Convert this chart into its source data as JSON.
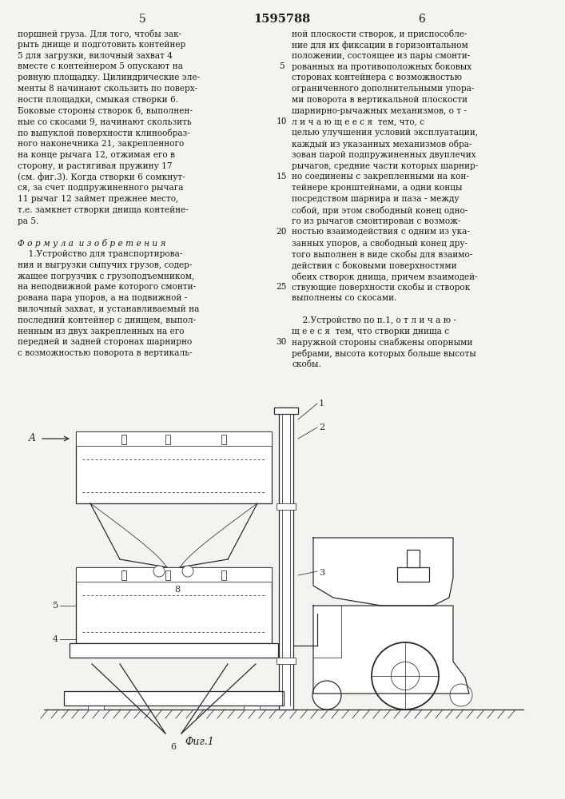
{
  "page_bg": "#f5f3ef",
  "header_page_left": "5",
  "header_title": "1595788",
  "header_page_right": "6",
  "col_left_text": [
    "поршней груза. Для того, чтобы зак-",
    "рыть днище и подготовить контейнер",
    "5 для загрузки, вилочный захват 4",
    "вместе с контейнером 5 опускают на",
    "ровную площадку. Цилиндрические эле-",
    "менты 8 начинают скользить по поверх-",
    "ности площадки, смыкая створки 6.",
    "Боковые стороны створок 6, выполнен-",
    "ные со скосами 9, начинают скользить",
    "по выпуклой поверхности клинообраз-",
    "ного наконечника 21, закрепленного",
    "на конце рычага 12, отжимая его в",
    "сторону, и растягивая пружину 17",
    "(см. фиг.3). Когда створки 6 сомкнут-",
    "ся, за счет подпружиненного рычага",
    "11 рычаг 12 займет прежнее место,",
    "т.е. замкнет створки днища контейне-",
    "ра 5.",
    "",
    "Ф о р м у л а  и з о б р е т е н и я",
    "    1.Устройство для транспортирова-",
    "ния и выгрузки сыпучих грузов, содер-",
    "жащее погрузчик с грузоподъемником,",
    "на неподвижной раме которого смонти-",
    "рована пара упоров, а на подвижной -",
    "вилочный захват, и устанавливаемый на",
    "последний контейнер с днищем, выпол-",
    "ненным из двух закрепленных на его",
    "передней и задней сторонах шарнирно",
    "с возможностью поворота в вертикаль-"
  ],
  "col_right_text_lines": [
    "ной плоскости створок, и приспособле-",
    "ние для их фиксации в горизонтальном",
    "положении, состоящее из пары смонти-",
    "рованных на противоположных боковых",
    "сторонах контейнера с возможностью",
    "ограниченного дополнительными упора-",
    "ми поворота в вертикальной плоскости",
    "шарнирно-рычажных механизмов, о т -",
    "л и ч а ю щ е е с я  тем, что, с",
    "целью улучшения условий эксплуатации,",
    "каждый из указанных механизмов обра-",
    "зован парой подпружиненных двуплечих",
    "рычагов, средние части которых шарнир-",
    "но соединены с закрепленными на кон-",
    "тейнере кронштейнами, а одни концы",
    "посредством шарнира и паза - между",
    "собой, при этом свободный конец одно-",
    "го из рычагов смонтирован с возмож-",
    "ностью взаимодействия с одним из ука-",
    "занных упоров, а свободный конец дру-",
    "того выполнен в виде скобы для взаимо-",
    "действия с боковыми поверхностями",
    "обеих створок днища, причем взаимодей-",
    "ствующие поверхности скобы и створок",
    "выполнены со скосами.",
    "",
    "    2.Устройство по п.1, о т л и ч а ю -",
    "щ е е с я  тем, что створки днища с",
    "наружной стороны снабжены опорными",
    "ребрами, высота которых больше высоты",
    "скобы."
  ],
  "line_numbers": [
    5,
    10,
    15,
    20,
    25,
    30
  ],
  "line_num_rows": [
    3,
    8,
    13,
    18,
    23,
    28
  ],
  "fig_caption": "Фиг.1"
}
